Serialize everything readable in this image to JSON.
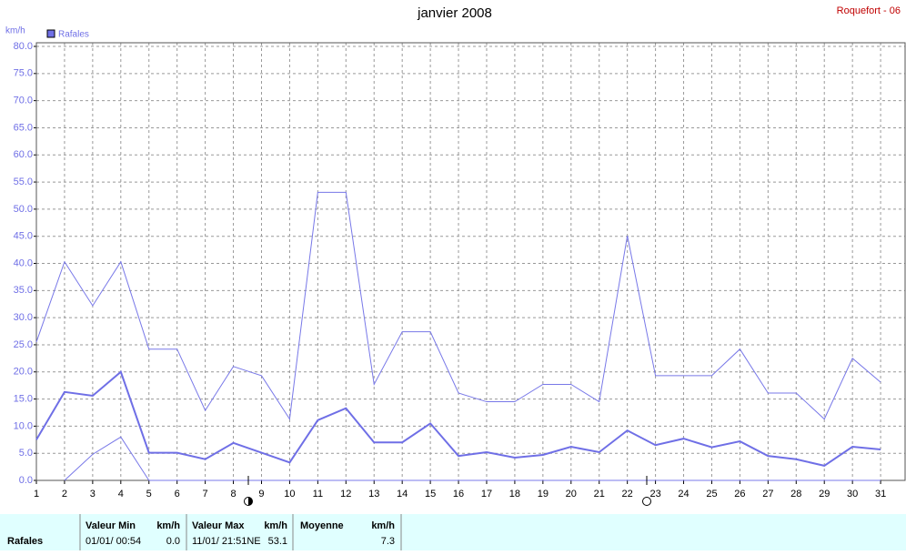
{
  "header": {
    "title": "janvier 2008",
    "station": "Roquefort - 06"
  },
  "chart_data": {
    "type": "line",
    "y_unit": "km/h",
    "x": [
      1,
      2,
      3,
      4,
      5,
      6,
      7,
      8,
      9,
      10,
      11,
      12,
      13,
      14,
      15,
      16,
      17,
      18,
      19,
      20,
      21,
      22,
      23,
      24,
      25,
      26,
      27,
      28,
      29,
      30,
      31
    ],
    "xlim": [
      1,
      31.87
    ],
    "xticks": [
      1,
      2,
      3,
      4,
      5,
      6,
      7,
      8,
      9,
      10,
      11,
      12,
      13,
      14,
      15,
      16,
      17,
      18,
      19,
      20,
      21,
      22,
      23,
      24,
      25,
      26,
      27,
      28,
      29,
      30,
      31
    ],
    "ylim": [
      0,
      80
    ],
    "yticks": [
      {
        "value": 0,
        "label": "0.0"
      },
      {
        "value": 5,
        "label": "5.0"
      },
      {
        "value": 10,
        "label": "10.0"
      },
      {
        "value": 15,
        "label": "15.0"
      },
      {
        "value": 20,
        "label": "20.0"
      },
      {
        "value": 25,
        "label": "25.0"
      },
      {
        "value": 30,
        "label": "30.0"
      },
      {
        "value": 35,
        "label": "35.0"
      },
      {
        "value": 40,
        "label": "40.0"
      },
      {
        "value": 45,
        "label": "45.0"
      },
      {
        "value": 50,
        "label": "50.0"
      },
      {
        "value": 55,
        "label": "55.0"
      },
      {
        "value": 60,
        "label": "60.0"
      },
      {
        "value": 65,
        "label": "65.0"
      },
      {
        "value": 70,
        "label": "70.0"
      },
      {
        "value": 75,
        "label": "75.0"
      },
      {
        "value": 80,
        "label": "80.0"
      }
    ],
    "grid": true,
    "series": [
      {
        "name": "Rafales",
        "color": "#6f6fe6",
        "width": 2,
        "values": [
          7.5,
          16.3,
          15.6,
          20.0,
          5.1,
          5.1,
          3.9,
          6.9,
          5.1,
          3.3,
          11.1,
          13.3,
          7.0,
          7.0,
          10.5,
          4.5,
          5.2,
          4.2,
          4.7,
          6.2,
          5.2,
          9.2,
          6.5,
          7.7,
          6.1,
          7.2,
          4.5,
          3.9,
          2.7,
          6.2,
          5.7
        ]
      },
      {
        "color": "#7878e8",
        "width": 1,
        "values": [
          25.5,
          40.3,
          32.2,
          40.3,
          24.2,
          24.2,
          12.9,
          21.0,
          19.3,
          11.3,
          53.1,
          53.1,
          17.7,
          27.4,
          27.4,
          16.1,
          14.5,
          14.5,
          17.7,
          17.7,
          14.5,
          45.1,
          19.3,
          19.3,
          19.3,
          24.2,
          16.1,
          16.1,
          11.3,
          22.5,
          18.1
        ]
      },
      {
        "color": "#7878e8",
        "width": 1,
        "values": [
          null,
          0,
          4.8,
          8.0,
          0,
          0,
          0,
          0,
          0,
          0,
          0,
          0,
          0,
          0,
          0,
          0,
          0,
          0,
          0,
          0,
          0,
          0,
          0,
          0,
          0,
          0,
          0,
          0,
          0,
          0,
          0
        ]
      }
    ]
  },
  "summary": {
    "label": "Rafales",
    "min": {
      "title": "Valeur Min",
      "unit": "km/h",
      "when": "01/01/ 00:54",
      "value": "0.0"
    },
    "max": {
      "title": "Valeur Max",
      "unit": "km/h",
      "when": "11/01/ 21:51NE",
      "value": "53.1"
    },
    "mean": {
      "title": "Moyenne",
      "unit": "km/h",
      "value": "7.3"
    }
  }
}
